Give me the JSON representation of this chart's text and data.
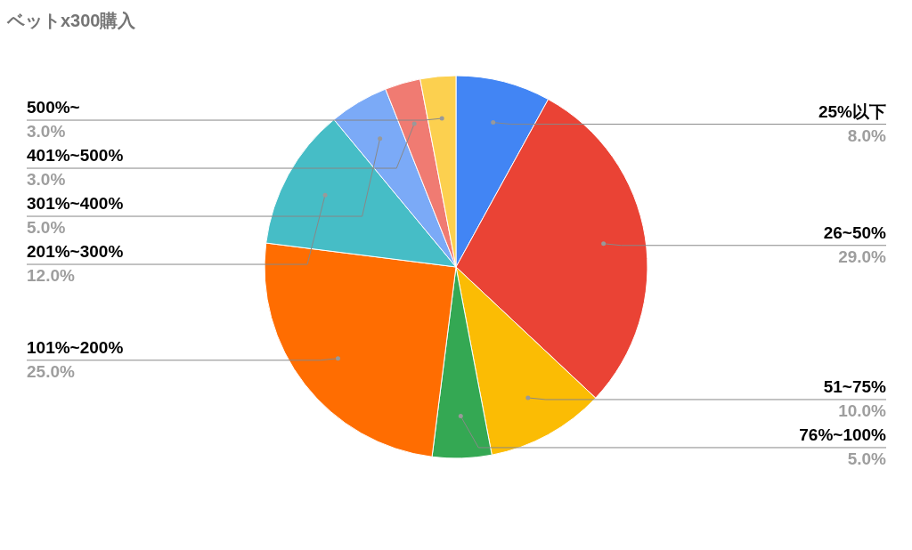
{
  "chart_data": {
    "type": "pie",
    "title": "ベットx300購入",
    "categories": [
      "25%以下",
      "26~50%",
      "51~75%",
      "76%~100%",
      "101%~200%",
      "201%~300%",
      "301%~400%",
      "401%~500%",
      "500%~"
    ],
    "values": [
      8,
      29,
      10,
      5,
      25,
      12,
      5,
      3,
      3
    ],
    "value_labels": [
      "8.0%",
      "29.0%",
      "10.0%",
      "5.0%",
      "25.0%",
      "12.0%",
      "5.0%",
      "3.0%",
      "3.0%"
    ],
    "colors": [
      "#4285f4",
      "#ea4335",
      "#fbbc04",
      "#34a853",
      "#ff6d01",
      "#46bdc6",
      "#7baaf7",
      "#f07b72",
      "#fcd04f"
    ]
  }
}
